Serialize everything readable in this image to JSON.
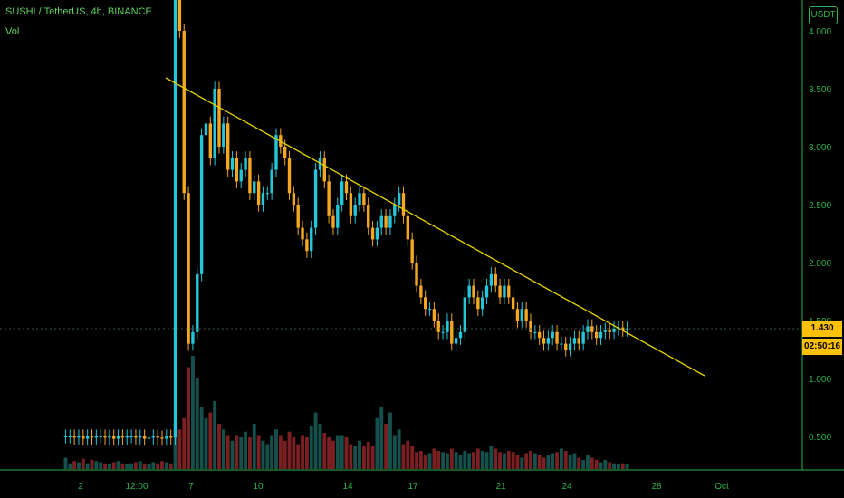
{
  "header": {
    "symbol_line": "SUSHI / TetherUS, 4h, BINANCE",
    "volume_label": "Vol"
  },
  "axis": {
    "unit_badge": "USDT"
  },
  "price_tag": {
    "last_price": "1.430",
    "countdown": "02:50:16"
  },
  "colors": {
    "up": "#26c6da",
    "down": "#f5a623",
    "vol_up": "#16504c",
    "vol_down": "#7a1f22",
    "trendline": "#e8d400",
    "axis_text": "#2ab34a",
    "price_box": "#ffc107"
  },
  "chart_data": {
    "type": "candlestick",
    "title": "",
    "y_ticks": [
      "4.000",
      "3.500",
      "3.000",
      "2.500",
      "2.000",
      "1.500",
      "1.000",
      "0.500"
    ],
    "x_ticks": [
      "2",
      "12:00",
      "7",
      "10",
      "14",
      "17",
      "21",
      "24",
      "28",
      "Oct"
    ],
    "ylim": [
      0.2,
      4.3
    ],
    "grid": false,
    "candles_close": [
      0.5,
      0.5,
      0.49,
      0.5,
      0.48,
      0.5,
      0.49,
      0.5,
      0.5,
      0.49,
      0.5,
      0.48,
      0.5,
      0.49,
      0.5,
      0.5,
      0.49,
      0.5,
      0.48,
      0.49,
      0.5,
      0.49,
      0.48,
      0.5,
      0.49,
      4.3,
      4.0,
      2.6,
      1.3,
      1.4,
      1.9,
      3.1,
      3.2,
      2.9,
      3.5,
      3.0,
      3.2,
      2.8,
      2.9,
      2.7,
      2.8,
      2.9,
      2.6,
      2.7,
      2.5,
      2.6,
      2.6,
      2.8,
      3.1,
      3.0,
      2.9,
      2.6,
      2.5,
      2.3,
      2.2,
      2.1,
      2.3,
      2.8,
      2.9,
      2.7,
      2.4,
      2.3,
      2.5,
      2.7,
      2.6,
      2.4,
      2.5,
      2.6,
      2.5,
      2.3,
      2.2,
      2.3,
      2.4,
      2.3,
      2.4,
      2.5,
      2.6,
      2.4,
      2.2,
      2.0,
      1.8,
      1.7,
      1.6,
      1.6,
      1.5,
      1.4,
      1.4,
      1.5,
      1.3,
      1.35,
      1.4,
      1.7,
      1.8,
      1.7,
      1.6,
      1.7,
      1.8,
      1.9,
      1.8,
      1.7,
      1.8,
      1.7,
      1.6,
      1.5,
      1.6,
      1.5,
      1.4,
      1.4,
      1.35,
      1.3,
      1.35,
      1.4,
      1.3,
      1.3,
      1.25,
      1.3,
      1.35,
      1.3,
      1.4,
      1.45,
      1.4,
      1.35,
      1.4,
      1.42,
      1.4,
      1.43,
      1.44,
      1.42,
      1.43
    ],
    "volume_relative": [
      0.1,
      0.05,
      0.07,
      0.06,
      0.09,
      0.05,
      0.08,
      0.07,
      0.06,
      0.05,
      0.04,
      0.06,
      0.07,
      0.05,
      0.04,
      0.05,
      0.06,
      0.07,
      0.05,
      0.04,
      0.06,
      0.05,
      0.07,
      0.06,
      0.05,
      0.4,
      0.35,
      0.45,
      0.9,
      1.0,
      0.8,
      0.55,
      0.45,
      0.5,
      0.6,
      0.4,
      0.35,
      0.3,
      0.25,
      0.3,
      0.28,
      0.33,
      0.28,
      0.4,
      0.3,
      0.25,
      0.22,
      0.3,
      0.35,
      0.3,
      0.25,
      0.33,
      0.28,
      0.22,
      0.3,
      0.28,
      0.38,
      0.5,
      0.4,
      0.32,
      0.28,
      0.25,
      0.3,
      0.3,
      0.28,
      0.22,
      0.2,
      0.25,
      0.2,
      0.24,
      0.2,
      0.45,
      0.55,
      0.4,
      0.5,
      0.3,
      0.35,
      0.22,
      0.25,
      0.2,
      0.15,
      0.16,
      0.12,
      0.14,
      0.18,
      0.16,
      0.15,
      0.14,
      0.18,
      0.15,
      0.12,
      0.16,
      0.14,
      0.15,
      0.18,
      0.16,
      0.15,
      0.2,
      0.18,
      0.15,
      0.14,
      0.16,
      0.15,
      0.12,
      0.1,
      0.14,
      0.16,
      0.14,
      0.12,
      0.1,
      0.12,
      0.14,
      0.15,
      0.18,
      0.16,
      0.12,
      0.14,
      0.1,
      0.08,
      0.12,
      0.1,
      0.08,
      0.06,
      0.08,
      0.06,
      0.05,
      0.04,
      0.05,
      0.04
    ],
    "trendline": {
      "start": 3.6,
      "end": 1.02
    }
  }
}
